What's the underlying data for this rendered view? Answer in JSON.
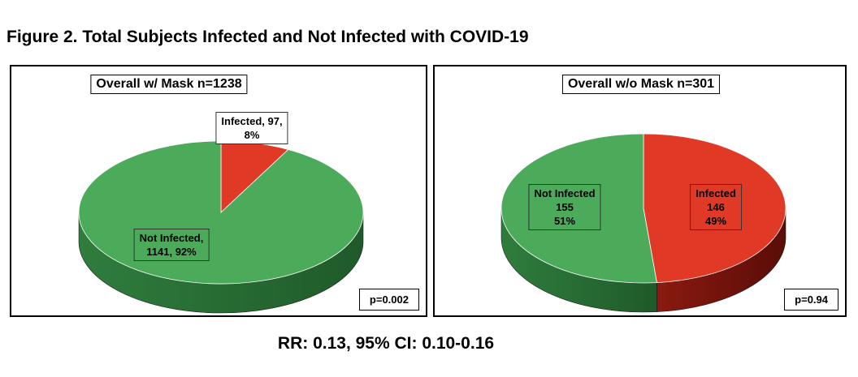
{
  "figure_title": "Figure 2. Total Subjects Infected and Not Infected with COVID-19",
  "footnote": "RR: 0.13, 95% CI: 0.10-0.16",
  "colors": {
    "not_infected": "#4cab5b",
    "not_infected_side": "#2f7d3d",
    "infected": "#e03a27",
    "infected_side": "#8a1a10"
  },
  "chart_data": [
    {
      "type": "pie",
      "title": "Overall w/ Mask n=1238",
      "p_value": "p=0.002",
      "slices": [
        {
          "name": "Infected",
          "value": 97,
          "percent": 8,
          "label_lines": [
            "Infected, 97,",
            "8%"
          ]
        },
        {
          "name": "Not Infected",
          "value": 1141,
          "percent": 92,
          "label_lines": [
            "Not Infected,",
            "1141, 92%"
          ]
        }
      ]
    },
    {
      "type": "pie",
      "title": "Overall w/o Mask n=301",
      "p_value": "p=0.94",
      "slices": [
        {
          "name": "Infected",
          "value": 146,
          "percent": 49,
          "label_lines": [
            "Infected",
            "146",
            "49%"
          ]
        },
        {
          "name": "Not Infected",
          "value": 155,
          "percent": 51,
          "label_lines": [
            "Not Infected",
            "155",
            "51%"
          ]
        }
      ]
    }
  ]
}
